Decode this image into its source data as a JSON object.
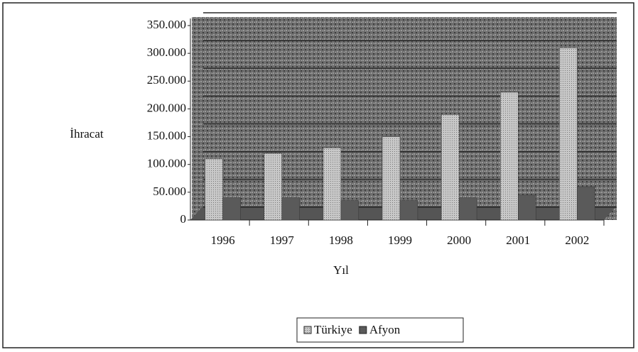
{
  "chart_data": {
    "type": "bar",
    "x_label": "Yıl",
    "y_label": "İhracat",
    "categories": [
      "1996",
      "1997",
      "1998",
      "1999",
      "2000",
      "2001",
      "2002"
    ],
    "series": [
      {
        "name": "Türkiye",
        "color": "#b8b8b8",
        "values": [
          110000,
          120000,
          130000,
          150000,
          190000,
          230000,
          310000
        ]
      },
      {
        "name": "Afyon",
        "color": "#5a5a5a",
        "values": [
          40000,
          40000,
          35000,
          35000,
          40000,
          45000,
          60000
        ]
      }
    ],
    "ylim": [
      0,
      350000
    ],
    "yticks": [
      0,
      {
        "value": 50000,
        "label": "50.000"
      },
      {
        "value": 100000,
        "label": "100.000"
      },
      {
        "value": 150000,
        "label": "150.000"
      },
      {
        "value": 200000,
        "label": "200.000"
      },
      {
        "value": 250000,
        "label": "250.000"
      },
      {
        "value": 300000,
        "label": "300.000"
      },
      {
        "value": 350000,
        "label": "350.000"
      }
    ],
    "grid": true,
    "legend": "bottom"
  }
}
